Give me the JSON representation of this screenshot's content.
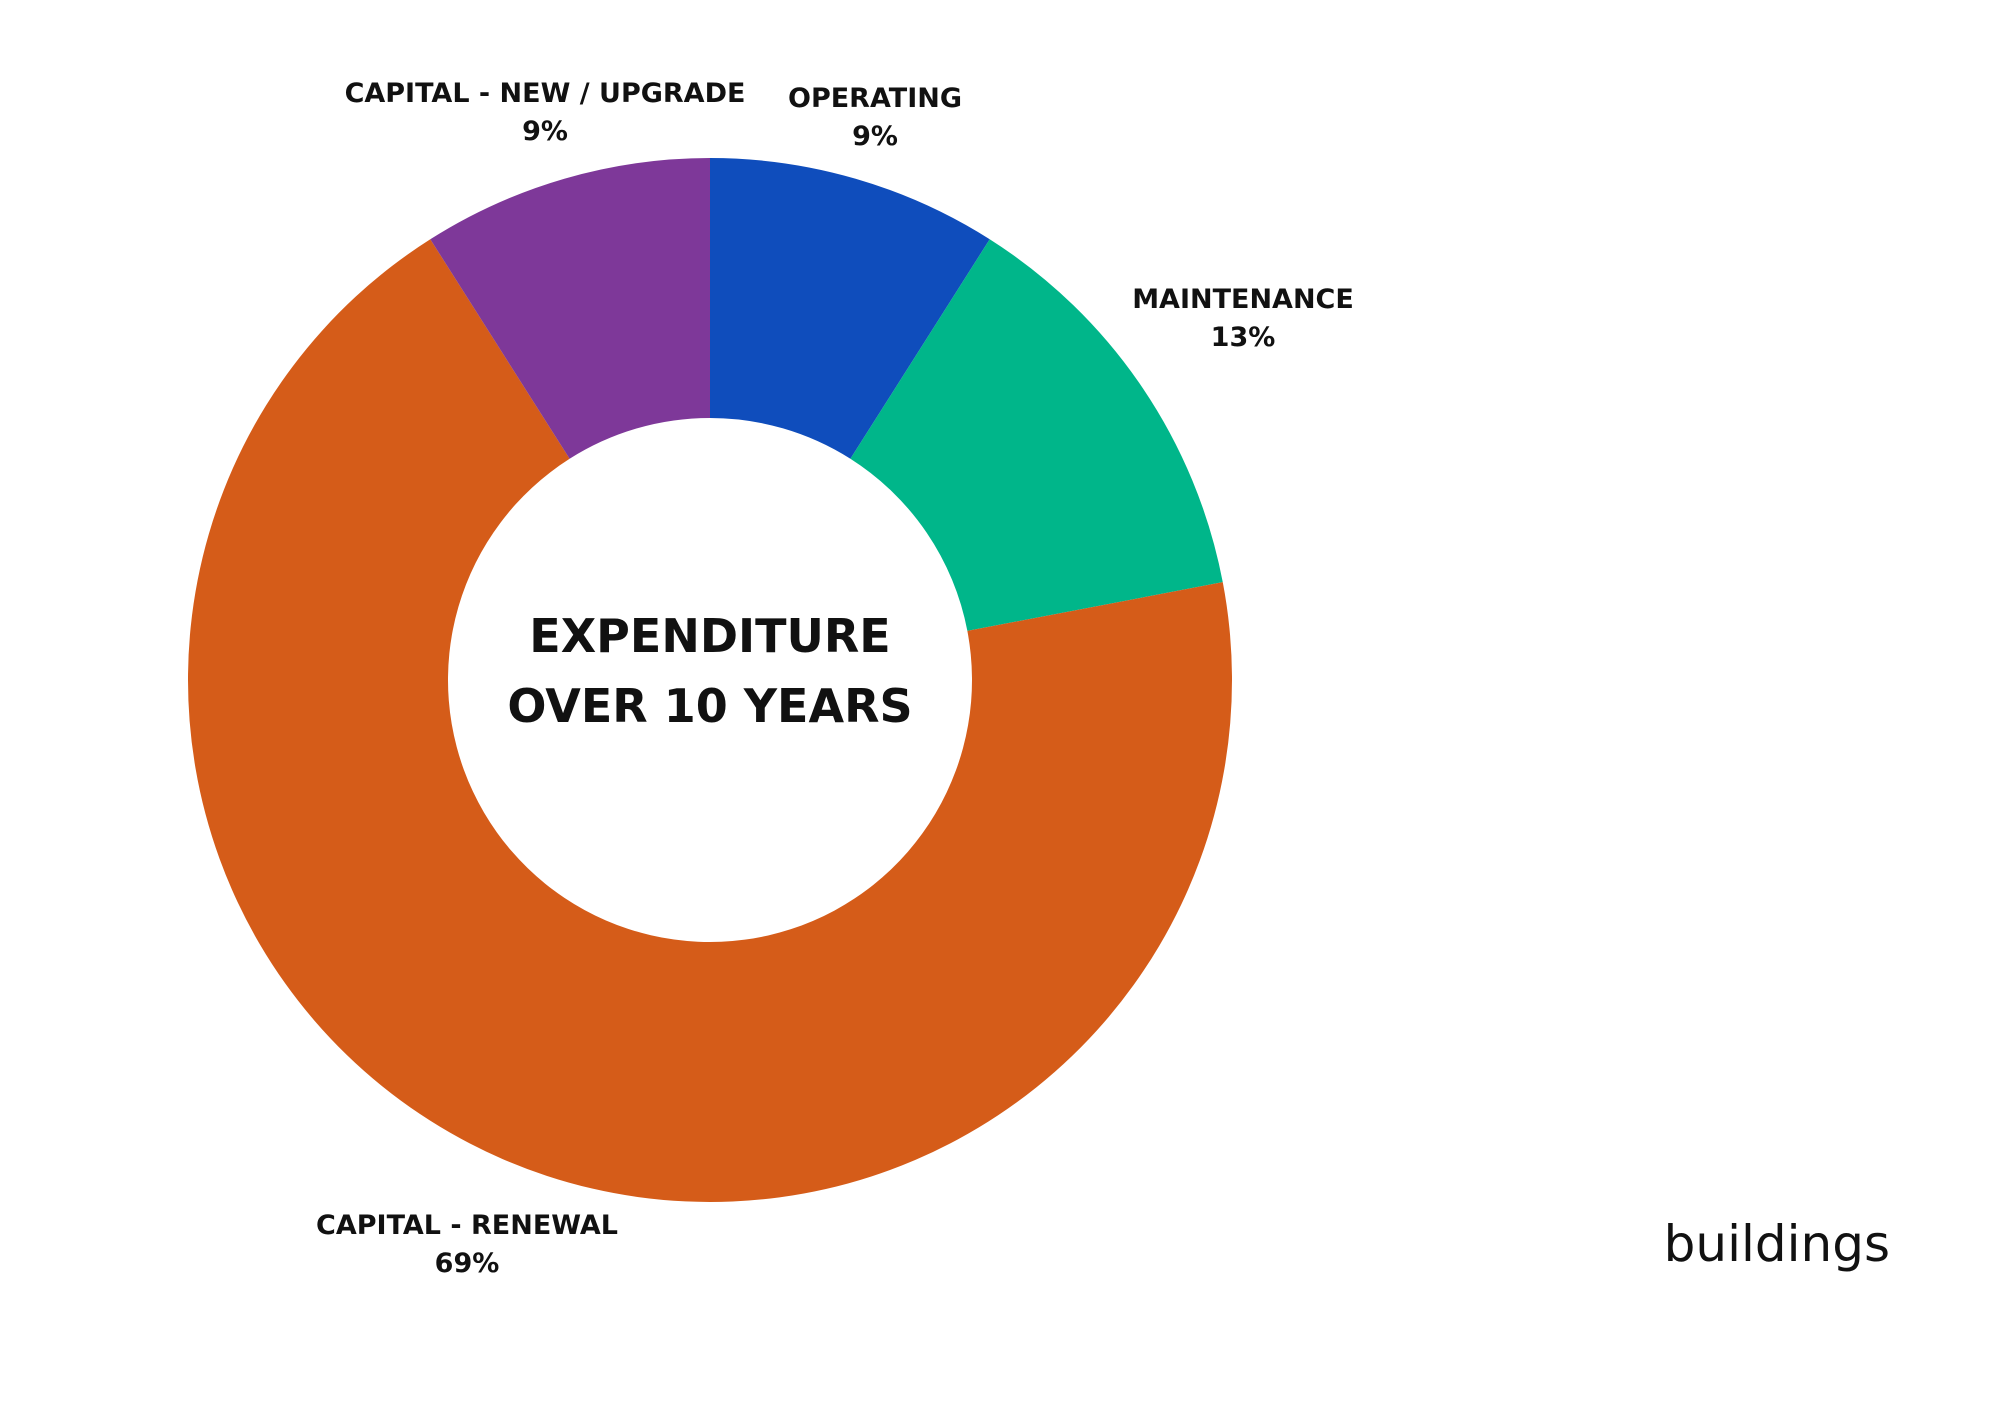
{
  "chart_data": {
    "type": "pie",
    "donut": true,
    "title_lines": [
      "EXPENDITURE",
      "OVER 10 YEARS"
    ],
    "slices": [
      {
        "label": "OPERATING",
        "value_label": "9%",
        "value": 9,
        "color": "#0F4DBC"
      },
      {
        "label": "MAINTENANCE",
        "value_label": "13%",
        "value": 13,
        "color": "#00B68A"
      },
      {
        "label": "CAPITAL - RENEWAL",
        "value_label": "69%",
        "value": 69,
        "color": "#D55C19"
      },
      {
        "label": "CAPITAL - NEW / UPGRADE",
        "value_label": "9%",
        "value": 9,
        "color": "#7E3899"
      }
    ],
    "legend": "none"
  },
  "caption": "buildings"
}
